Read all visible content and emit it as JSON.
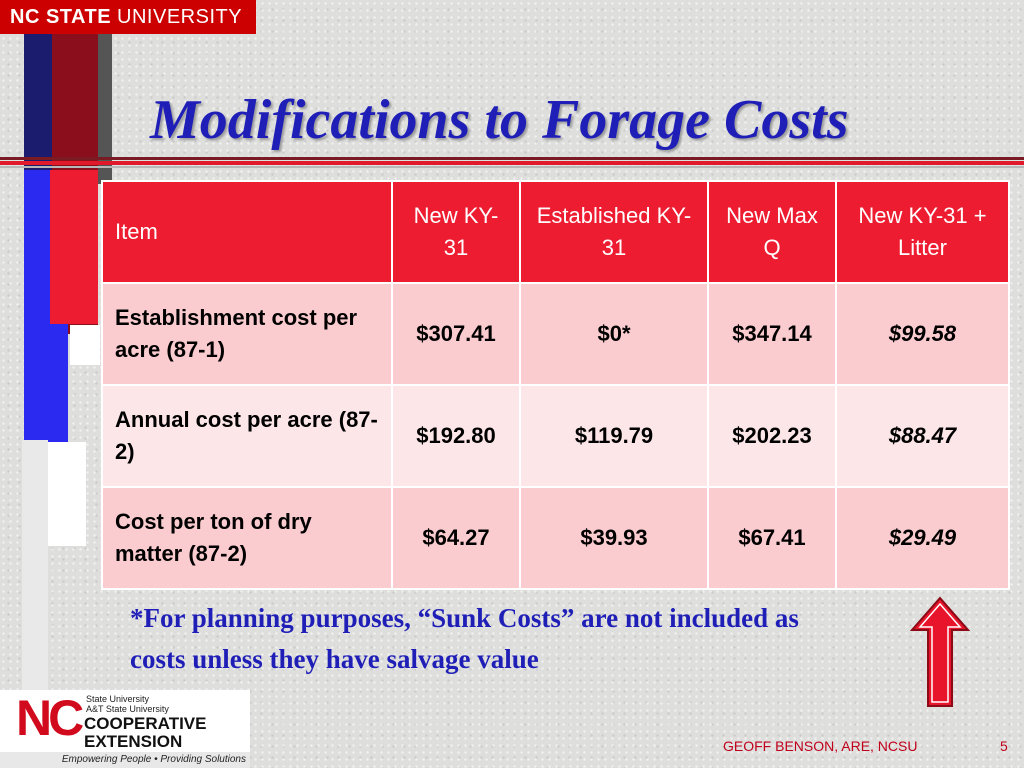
{
  "branding": {
    "university_bold": "NC STATE",
    "university_rest": "UNIVERSITY",
    "ce_nc": "NC",
    "ce_line1": "State University",
    "ce_line2": "A&T State University",
    "ce_word1": "COOPERATIVE",
    "ce_word2": "EXTENSION",
    "ce_tagline": "Empowering People • Providing Solutions"
  },
  "colors": {
    "title": "#1f1fb8",
    "header_red": "#ee1c30",
    "row_pink_dark": "#fbcccf",
    "row_pink_light": "#fce6e8",
    "arrow_red": "#e8142b"
  },
  "slide": {
    "title": "Modifications to Forage Costs",
    "footnote": "*For planning purposes, “Sunk Costs” are not included as costs unless they have salvage value",
    "footer_credit": "GEOFF BENSON, ARE, NCSU",
    "page_number": "5"
  },
  "table": {
    "headers": [
      "Item",
      "New KY-31",
      "Established KY-31",
      "New Max Q",
      "New KY-31 + Litter"
    ],
    "rows": [
      [
        "Establishment cost per acre (87-1)",
        "$307.41",
        "$0*",
        "$347.14",
        "$99.58"
      ],
      [
        "Annual cost per acre (87-2)",
        "$192.80",
        "$119.79",
        "$202.23",
        "$88.47"
      ],
      [
        "Cost per ton of dry matter (87-2)",
        "$64.27",
        "$39.93",
        "$67.41",
        "$29.49"
      ]
    ]
  },
  "icons": {
    "arrow": "up-arrow-icon"
  }
}
